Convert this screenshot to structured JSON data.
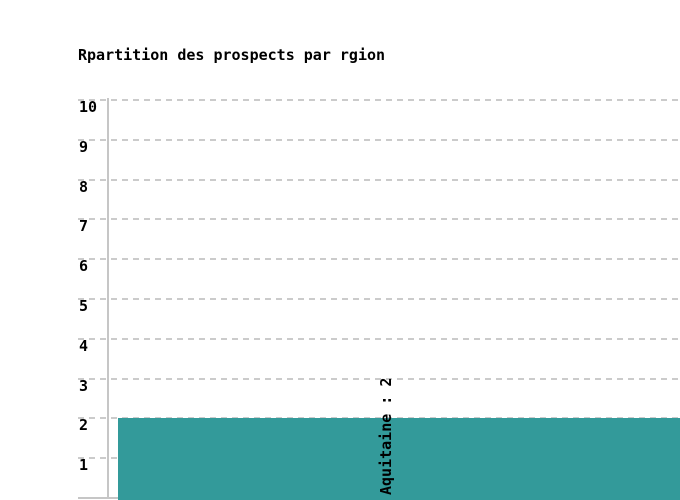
{
  "chart": {
    "title": "Rpartition des prospects par rgion"
  },
  "chart_data": {
    "type": "bar",
    "title": "Rpartition des prospects par rgion",
    "categories": [
      "Aquitaine"
    ],
    "values": [
      2
    ],
    "bar_value_labels": [
      "Aquitaine : 2"
    ],
    "ylim": [
      0,
      10
    ],
    "yticks": [
      1,
      2,
      3,
      4,
      5,
      6,
      7,
      8,
      9,
      10
    ],
    "grid": {
      "horizontal": true,
      "style": "dashed"
    },
    "legend_position": "none",
    "colors": {
      "bar": "#339a9a",
      "gridline": "#cbcbcb",
      "axis": "#c6c6c6",
      "text": "#000000",
      "background": "#ffffff"
    }
  }
}
